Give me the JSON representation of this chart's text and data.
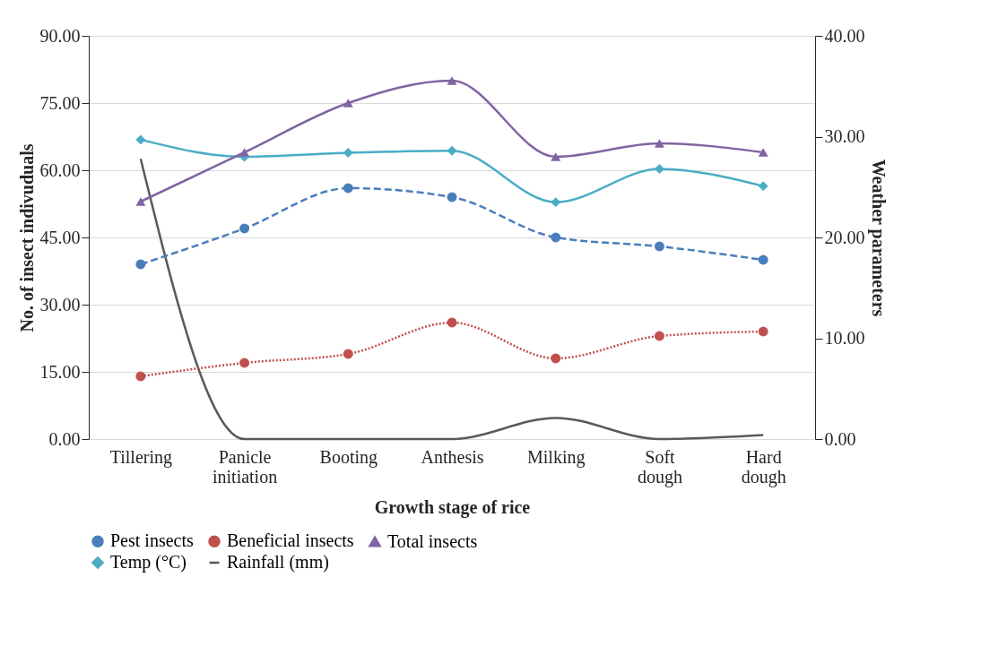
{
  "chart_data": {
    "type": "line",
    "xlabel": "Growth stage of rice",
    "ylabel": "No. of insect indivuduals",
    "y2label": "Weather parameters",
    "categories": [
      "Tillering",
      "Panicle initiation",
      "Booting",
      "Anthesis",
      "Milking",
      "Soft dough",
      "Hard dough"
    ],
    "series": [
      {
        "name": "Pest insects",
        "color": "#4a7ebb",
        "values": [
          39,
          47,
          56,
          54,
          45,
          43,
          40
        ],
        "marker": "circle",
        "line_style": "dashed"
      },
      {
        "name": "Beneficial insects",
        "color": "#c0504d",
        "values": [
          14,
          17,
          19,
          26,
          18,
          23,
          24
        ],
        "marker": "circle",
        "line_style": "dotted"
      },
      {
        "name": "Total insects",
        "color": "#8064a2",
        "values": [
          53,
          64,
          75,
          80,
          63,
          66,
          64
        ],
        "marker": "triangle",
        "line_style": "solid"
      },
      {
        "name": "Temp (°C)",
        "color": "#4bacc6",
        "values": [
          29.7,
          28.0,
          28.4,
          28.6,
          23.5,
          26.8,
          25.1
        ],
        "marker": "diamond",
        "line_style": "solid",
        "axis": "y2"
      },
      {
        "name": "Rainfall (mm)",
        "color": "#595959",
        "values": [
          27.8,
          0,
          0,
          0,
          2.1,
          0,
          0.4
        ],
        "marker": "none",
        "line_style": "solid",
        "axis": "y2"
      }
    ],
    "ylim": [
      0,
      90
    ],
    "yticks": [
      {
        "value": 0,
        "label": "0.00"
      },
      {
        "value": 15,
        "label": "15.00"
      },
      {
        "value": 30,
        "label": "30.00"
      },
      {
        "value": 45,
        "label": "45.00"
      },
      {
        "value": 60,
        "label": "60.00"
      },
      {
        "value": 75,
        "label": "75.00"
      },
      {
        "value": 90,
        "label": "90.00"
      }
    ],
    "y2lim": [
      0,
      40
    ],
    "y2ticks": [
      {
        "value": 0,
        "label": "0.00"
      },
      {
        "value": 10,
        "label": "10.00"
      },
      {
        "value": 20,
        "label": "20.00"
      },
      {
        "value": 30,
        "label": "30.00"
      },
      {
        "value": 40,
        "label": "40.00"
      }
    ],
    "grid": "y",
    "legend": "bottom"
  }
}
